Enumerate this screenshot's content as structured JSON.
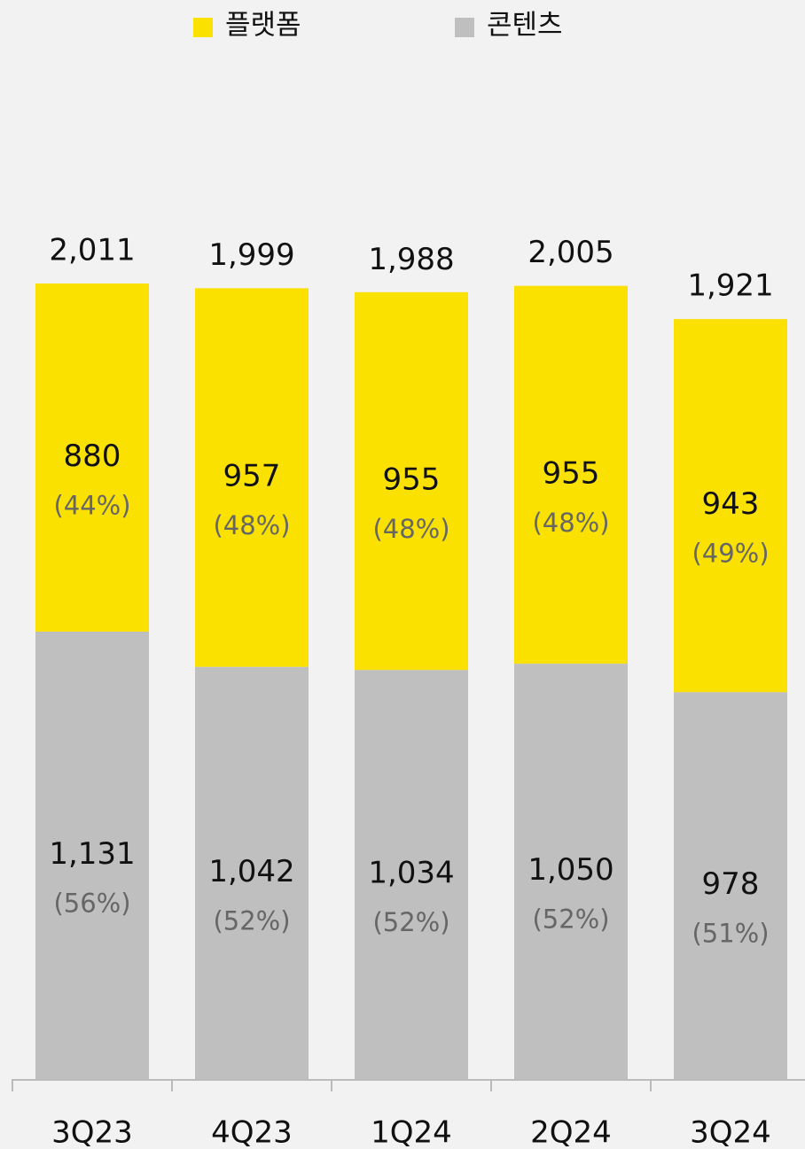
{
  "chart_data": {
    "type": "stacked_bar",
    "categories": [
      "3Q23",
      "4Q23",
      "1Q24",
      "2Q24",
      "3Q24"
    ],
    "series": [
      {
        "name": "플랫폼",
        "color": "#fae100",
        "values": [
          880,
          957,
          955,
          955,
          943
        ],
        "share_labels": [
          "(44%)",
          "(48%)",
          "(48%)",
          "(48%)",
          "(49%)"
        ]
      },
      {
        "name": "콘텐츠",
        "color": "#bfbfbf",
        "values": [
          1131,
          1042,
          1034,
          1050,
          978
        ],
        "value_labels": [
          "1,131",
          "1,042",
          "1,034",
          "1,050",
          "978"
        ],
        "share_labels": [
          "(56%)",
          "(52%)",
          "(52%)",
          "(52%)",
          "(51%)"
        ]
      }
    ],
    "totals": [
      2011,
      1999,
      1988,
      2005,
      1921
    ],
    "total_labels": [
      "2,011",
      "1,999",
      "1,988",
      "2,005",
      "1,921"
    ]
  }
}
